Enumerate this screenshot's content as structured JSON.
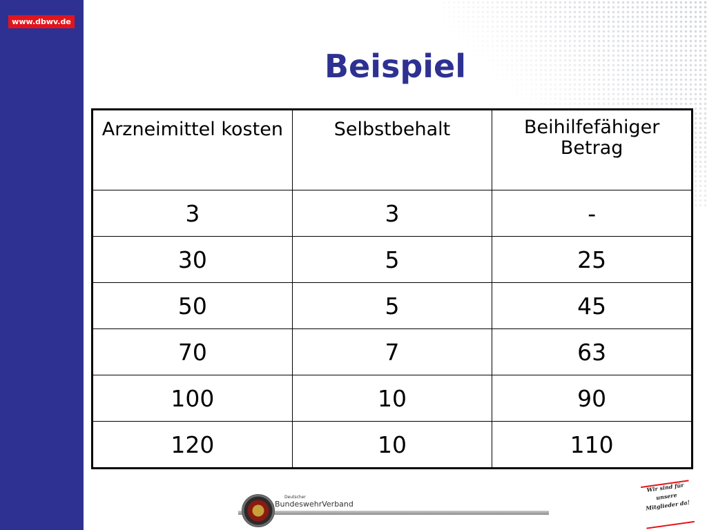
{
  "header": {
    "url_badge": "www.dbwv.de",
    "title": "Beispiel"
  },
  "table": {
    "headers": [
      "Arzneimittel kosten",
      "Selbstbehalt",
      "Beihilfefähiger Betrag"
    ],
    "rows": [
      [
        "3",
        "3",
        "-"
      ],
      [
        "30",
        "5",
        "25"
      ],
      [
        "50",
        "5",
        "45"
      ],
      [
        "70",
        "7",
        "63"
      ],
      [
        "100",
        "10",
        "90"
      ],
      [
        "120",
        "10",
        "110"
      ]
    ]
  },
  "footer": {
    "org_prefix": "Deutscher",
    "org_name": "BundeswehrVerband",
    "stamp_lines": [
      "Wir sind für",
      "unsere",
      "Mitglieder da!"
    ]
  },
  "colors": {
    "sidebar": "#2e3192",
    "title": "#2e3192",
    "badge": "#e3141b"
  }
}
